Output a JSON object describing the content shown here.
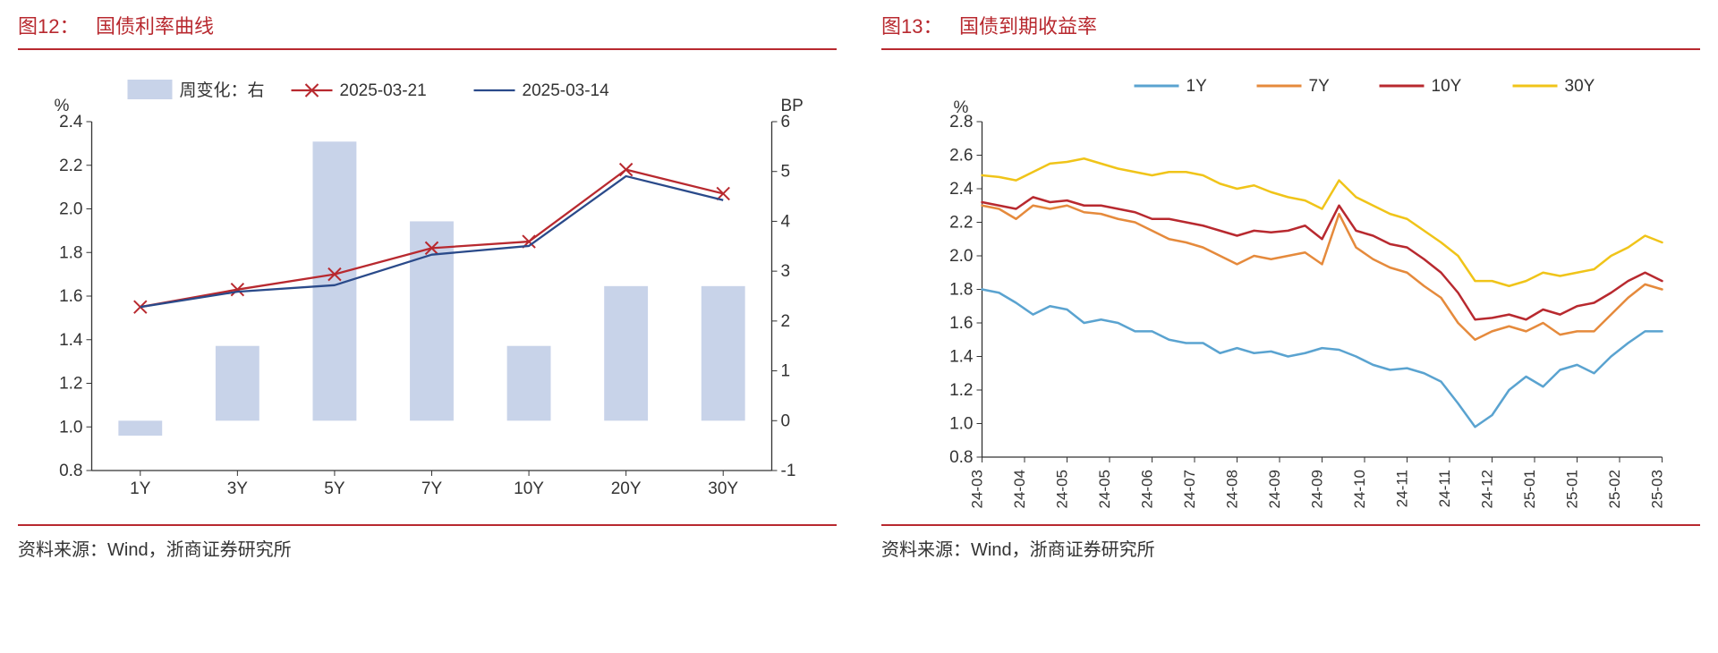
{
  "left": {
    "fignum": "图12：",
    "figname": "国债利率曲线",
    "source": "资料来源：Wind，浙商证券研究所",
    "chart": {
      "type": "bar+line-dual-axis",
      "categories": [
        "1Y",
        "3Y",
        "5Y",
        "7Y",
        "10Y",
        "20Y",
        "30Y"
      ],
      "left_axis": {
        "label": "%",
        "min": 0.8,
        "max": 2.4,
        "step": 0.2,
        "fontsize": 19,
        "color": "#333333"
      },
      "right_axis": {
        "label": "BP",
        "min": -1,
        "max": 6,
        "step": 1,
        "fontsize": 19,
        "color": "#333333"
      },
      "bars": {
        "name": "周变化：右",
        "axis": "right",
        "values": [
          -0.3,
          1.5,
          5.6,
          4.0,
          1.5,
          2.7,
          2.7
        ],
        "color": "#c8d3e9",
        "width": 0.45
      },
      "series": [
        {
          "name": "2025-03-21",
          "axis": "left",
          "values": [
            1.55,
            1.63,
            1.7,
            1.82,
            1.85,
            2.18,
            2.07
          ],
          "color": "#b8292f",
          "line_width": 2.3,
          "marker": "x",
          "marker_size": 7
        },
        {
          "name": "2025-03-14",
          "axis": "left",
          "values": [
            1.55,
            1.62,
            1.65,
            1.79,
            1.83,
            2.15,
            2.04
          ],
          "color": "#2a4a8a",
          "line_width": 2.3,
          "marker": null
        }
      ],
      "legend": {
        "position": "top",
        "fontsize": 19
      },
      "background": "#ffffff",
      "tick_color": "#333333",
      "border_color": "#333333"
    }
  },
  "right": {
    "fignum": "图13：",
    "figname": "国债到期收益率",
    "source": "资料来源：Wind，浙商证券研究所",
    "chart": {
      "type": "line",
      "y_axis": {
        "label": "%",
        "min": 0.8,
        "max": 2.8,
        "step": 0.2,
        "fontsize": 19,
        "color": "#333333"
      },
      "x_ticks": [
        "24-03",
        "24-04",
        "24-05",
        "24-05",
        "24-06",
        "24-07",
        "24-08",
        "24-09",
        "24-09",
        "24-10",
        "24-11",
        "24-11",
        "24-12",
        "25-01",
        "25-01",
        "25-02",
        "25-03"
      ],
      "series": [
        {
          "name": "1Y",
          "color": "#5aa3d0",
          "line_width": 2.5,
          "values": [
            1.8,
            1.78,
            1.72,
            1.65,
            1.7,
            1.68,
            1.6,
            1.62,
            1.6,
            1.55,
            1.55,
            1.5,
            1.48,
            1.48,
            1.42,
            1.45,
            1.42,
            1.43,
            1.4,
            1.42,
            1.45,
            1.44,
            1.4,
            1.35,
            1.32,
            1.33,
            1.3,
            1.25,
            1.12,
            0.98,
            1.05,
            1.2,
            1.28,
            1.22,
            1.32,
            1.35,
            1.3,
            1.4,
            1.48,
            1.55,
            1.55
          ]
        },
        {
          "name": "7Y",
          "color": "#e58a3c",
          "line_width": 2.5,
          "values": [
            2.3,
            2.28,
            2.22,
            2.3,
            2.28,
            2.3,
            2.26,
            2.25,
            2.22,
            2.2,
            2.15,
            2.1,
            2.08,
            2.05,
            2.0,
            1.95,
            2.0,
            1.98,
            2.0,
            2.02,
            1.95,
            2.25,
            2.05,
            1.98,
            1.93,
            1.9,
            1.82,
            1.75,
            1.6,
            1.5,
            1.55,
            1.58,
            1.55,
            1.6,
            1.53,
            1.55,
            1.55,
            1.65,
            1.75,
            1.83,
            1.8
          ]
        },
        {
          "name": "10Y",
          "color": "#b8292f",
          "line_width": 2.5,
          "values": [
            2.32,
            2.3,
            2.28,
            2.35,
            2.32,
            2.33,
            2.3,
            2.3,
            2.28,
            2.26,
            2.22,
            2.22,
            2.2,
            2.18,
            2.15,
            2.12,
            2.15,
            2.14,
            2.15,
            2.18,
            2.1,
            2.3,
            2.15,
            2.12,
            2.07,
            2.05,
            1.98,
            1.9,
            1.78,
            1.62,
            1.63,
            1.65,
            1.62,
            1.68,
            1.65,
            1.7,
            1.72,
            1.78,
            1.85,
            1.9,
            1.85
          ]
        },
        {
          "name": "30Y",
          "color": "#f0c419",
          "line_width": 2.5,
          "values": [
            2.48,
            2.47,
            2.45,
            2.5,
            2.55,
            2.56,
            2.58,
            2.55,
            2.52,
            2.5,
            2.48,
            2.5,
            2.5,
            2.48,
            2.43,
            2.4,
            2.42,
            2.38,
            2.35,
            2.33,
            2.28,
            2.45,
            2.35,
            2.3,
            2.25,
            2.22,
            2.15,
            2.08,
            2.0,
            1.85,
            1.85,
            1.82,
            1.85,
            1.9,
            1.88,
            1.9,
            1.92,
            2.0,
            2.05,
            2.12,
            2.08
          ]
        }
      ],
      "legend": {
        "position": "top",
        "fontsize": 19
      },
      "background": "#ffffff",
      "border_color": "#333333"
    }
  }
}
